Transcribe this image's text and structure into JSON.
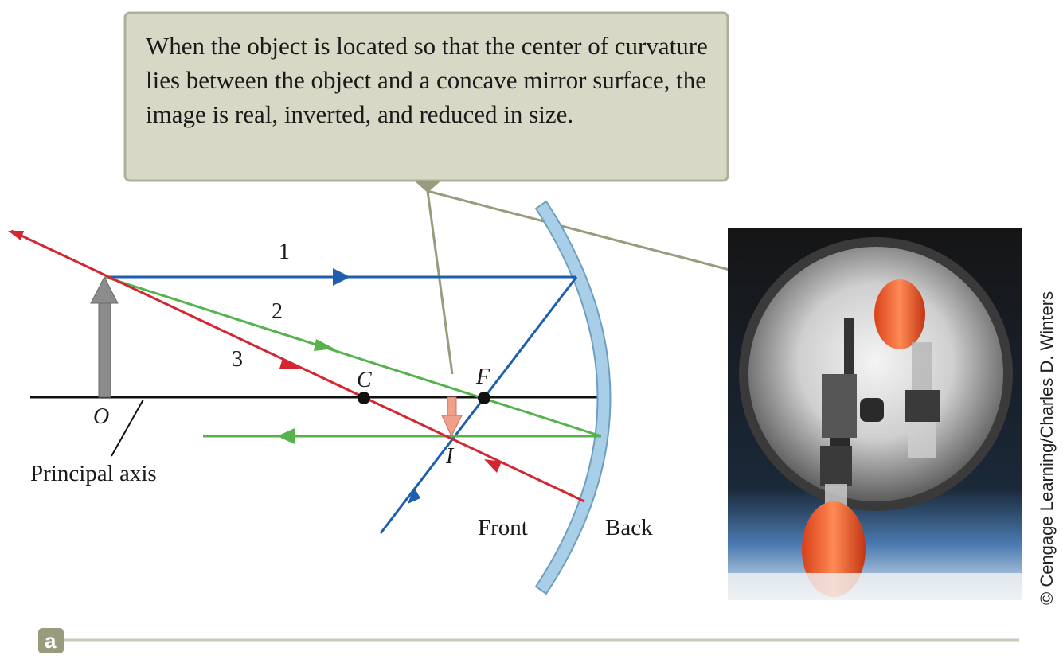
{
  "callout": {
    "text": "When the object is located so that the center of curvature lies between the object and a concave mirror surface, the image is real, inverted, and reduced in size."
  },
  "rays": {
    "ray1_label": "1",
    "ray2_label": "2",
    "ray3_label": "3"
  },
  "points": {
    "object": "O",
    "center": "C",
    "focal": "F",
    "image": "I"
  },
  "labels": {
    "principal_axis": "Principal axis",
    "front": "Front",
    "back": "Back"
  },
  "credit": "© Cengage Learning/Charles D. Winters",
  "part_label": "a",
  "colors": {
    "ray1": "#1d5fae",
    "ray2": "#55b24c",
    "ray3": "#d42630",
    "mirror": "#a9cfe8",
    "callout_bg": "#d8d8c6",
    "leader": "#9a9a7c",
    "object_arrow": "#8c8c8c",
    "image_arrow": "#f0a08a"
  }
}
